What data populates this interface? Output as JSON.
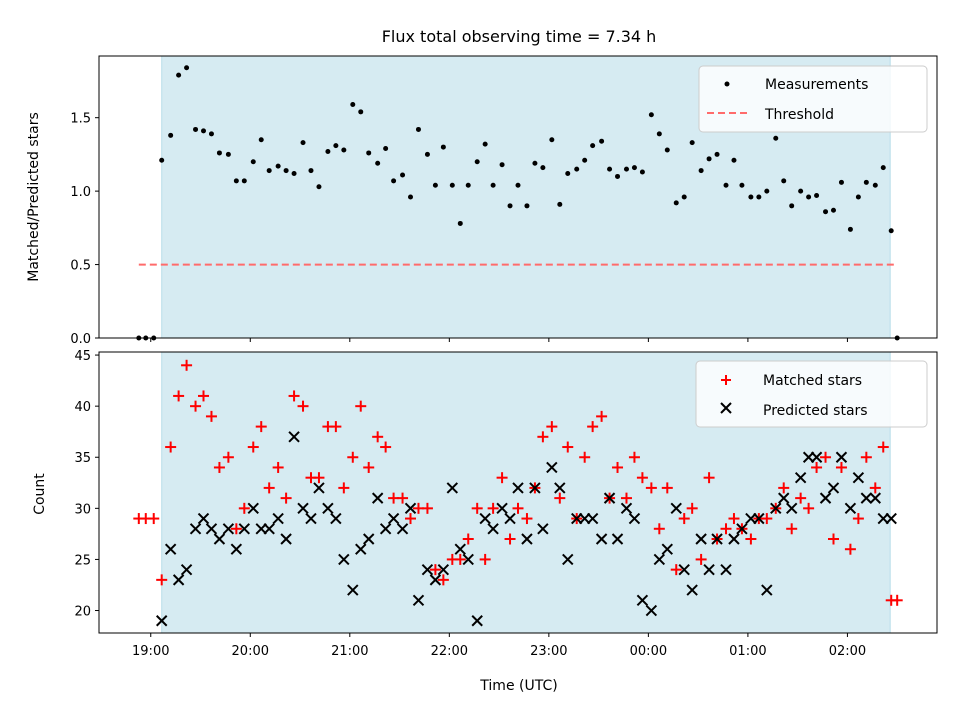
{
  "figure": {
    "title": "Flux total observing time = 7.34 h",
    "xlabel": "Time (UTC)",
    "x_tick_labels": [
      "19:00",
      "20:00",
      "21:00",
      "22:00",
      "23:00",
      "00:00",
      "01:00",
      "02:00"
    ]
  },
  "colors": {
    "shade": "#add8e6",
    "threshold": "#ff6b6b",
    "matched": "#ff0000",
    "predicted": "#000000",
    "measurement": "#000000"
  },
  "chart_data": [
    {
      "type": "scatter",
      "title": "Flux total observing time = 7.34 h",
      "xlabel": "",
      "ylabel": "Matched/Predicted stars",
      "x_unit": "hours since 19:00 UTC",
      "xlim": [
        -0.52,
        7.9
      ],
      "ylim": [
        0,
        1.92
      ],
      "y_ticks": [
        "0.0",
        "0.5",
        "1.0",
        "1.5"
      ],
      "shaded_span": [
        0.11,
        7.43
      ],
      "threshold": 0.5,
      "threshold_span": [
        -0.12,
        7.47
      ],
      "legend": {
        "placement": "top-right",
        "entries": [
          "Measurements",
          "Threshold"
        ]
      },
      "series": [
        {
          "name": "Measurements",
          "marker": "dot",
          "x": [
            -0.12,
            -0.05,
            0.03,
            0.11,
            0.2,
            0.28,
            0.36,
            0.45,
            0.53,
            0.61,
            0.69,
            0.78,
            0.86,
            0.94,
            1.03,
            1.11,
            1.19,
            1.28,
            1.36,
            1.44,
            1.53,
            1.61,
            1.69,
            1.78,
            1.86,
            1.94,
            2.03,
            2.11,
            2.19,
            2.28,
            2.36,
            2.44,
            2.53,
            2.61,
            2.69,
            2.78,
            2.86,
            2.94,
            3.03,
            3.11,
            3.19,
            3.28,
            3.36,
            3.44,
            3.53,
            3.61,
            3.69,
            3.78,
            3.86,
            3.94,
            4.03,
            4.11,
            4.19,
            4.28,
            4.36,
            4.44,
            4.53,
            4.61,
            4.69,
            4.78,
            4.86,
            4.94,
            5.03,
            5.11,
            5.19,
            5.28,
            5.36,
            5.44,
            5.53,
            5.61,
            5.69,
            5.78,
            5.86,
            5.94,
            6.03,
            6.11,
            6.19,
            6.28,
            6.36,
            6.44,
            6.53,
            6.61,
            6.69,
            6.78,
            6.86,
            6.94,
            7.03,
            7.11,
            7.19,
            7.28,
            7.36,
            7.44,
            7.5
          ],
          "y": [
            0,
            0,
            0,
            1.21,
            1.38,
            1.79,
            1.84,
            1.42,
            1.41,
            1.39,
            1.26,
            1.25,
            1.07,
            1.07,
            1.2,
            1.35,
            1.14,
            1.17,
            1.14,
            1.12,
            1.33,
            1.14,
            1.03,
            1.27,
            1.31,
            1.28,
            1.59,
            1.54,
            1.26,
            1.19,
            1.29,
            1.07,
            1.11,
            0.96,
            1.42,
            1.25,
            1.04,
            1.3,
            1.04,
            0.78,
            1.04,
            1.2,
            1.32,
            1.04,
            1.18,
            0.9,
            1.04,
            0.9,
            1.19,
            1.16,
            1.35,
            0.91,
            1.12,
            1.15,
            1.21,
            1.31,
            1.34,
            1.15,
            1.1,
            1.15,
            1.16,
            1.13,
            1.52,
            1.39,
            1.28,
            0.92,
            0.96,
            1.33,
            1.14,
            1.22,
            1.25,
            1.04,
            1.21,
            1.04,
            0.96,
            0.96,
            1.0,
            1.36,
            1.07,
            0.9,
            1.0,
            0.96,
            0.97,
            0.86,
            0.87,
            1.06,
            0.74,
            0.96,
            1.06,
            1.04,
            1.16,
            0.73,
            0
          ]
        },
        {
          "name": "Threshold",
          "marker": "dashed-line",
          "x": [
            -0.12,
            7.47
          ],
          "y": [
            0.5,
            0.5
          ]
        }
      ]
    },
    {
      "type": "scatter",
      "xlabel": "Time (UTC)",
      "ylabel": "Count",
      "x_unit": "hours since 19:00 UTC",
      "xlim": [
        -0.52,
        7.9
      ],
      "ylim": [
        17.8,
        45.3
      ],
      "y_ticks": [
        "20",
        "25",
        "30",
        "35",
        "40",
        "45"
      ],
      "shaded_span": [
        0.11,
        7.43
      ],
      "legend": {
        "placement": "top-right",
        "entries": [
          "Matched stars",
          "Predicted stars"
        ]
      },
      "series": [
        {
          "name": "Matched stars",
          "marker": "plus",
          "x": [
            -0.12,
            -0.05,
            0.03,
            0.11,
            0.2,
            0.28,
            0.36,
            0.45,
            0.53,
            0.61,
            0.69,
            0.78,
            0.86,
            0.94,
            1.03,
            1.11,
            1.19,
            1.28,
            1.36,
            1.44,
            1.53,
            1.61,
            1.69,
            1.78,
            1.86,
            1.94,
            2.03,
            2.11,
            2.19,
            2.28,
            2.36,
            2.44,
            2.53,
            2.61,
            2.69,
            2.78,
            2.86,
            2.94,
            3.03,
            3.11,
            3.19,
            3.28,
            3.36,
            3.44,
            3.53,
            3.61,
            3.69,
            3.78,
            3.86,
            3.94,
            4.03,
            4.11,
            4.19,
            4.28,
            4.36,
            4.44,
            4.53,
            4.61,
            4.69,
            4.78,
            4.86,
            4.94,
            5.03,
            5.11,
            5.19,
            5.28,
            5.36,
            5.44,
            5.53,
            5.61,
            5.69,
            5.78,
            5.86,
            5.94,
            6.03,
            6.11,
            6.19,
            6.28,
            6.36,
            6.44,
            6.53,
            6.61,
            6.69,
            6.78,
            6.86,
            6.94,
            7.03,
            7.11,
            7.19,
            7.28,
            7.36,
            7.44,
            7.5
          ],
          "y": [
            29,
            29,
            29,
            23,
            36,
            41,
            44,
            40,
            41,
            39,
            34,
            35,
            28,
            30,
            36,
            38,
            32,
            34,
            31,
            41,
            40,
            33,
            33,
            38,
            38,
            32,
            35,
            40,
            34,
            37,
            36,
            31,
            31,
            29,
            30,
            30,
            24,
            23,
            25,
            25,
            27,
            30,
            25,
            30,
            33,
            27,
            30,
            29,
            32,
            37,
            38,
            31,
            36,
            29,
            35,
            38,
            39,
            31,
            34,
            31,
            35,
            33,
            32,
            28,
            32,
            24,
            29,
            30,
            25,
            33,
            27,
            28,
            29,
            28,
            27,
            29,
            29,
            30,
            32,
            28,
            31,
            30,
            34,
            35,
            27,
            34,
            26,
            29,
            35,
            32,
            36,
            21,
            21
          ]
        },
        {
          "name": "Predicted stars",
          "marker": "x",
          "x": [
            0.11,
            0.2,
            0.28,
            0.36,
            0.45,
            0.53,
            0.61,
            0.69,
            0.78,
            0.86,
            0.94,
            1.03,
            1.11,
            1.19,
            1.28,
            1.36,
            1.44,
            1.53,
            1.61,
            1.69,
            1.78,
            1.86,
            1.94,
            2.03,
            2.11,
            2.19,
            2.28,
            2.36,
            2.44,
            2.53,
            2.61,
            2.69,
            2.78,
            2.86,
            2.94,
            3.03,
            3.11,
            3.19,
            3.28,
            3.36,
            3.44,
            3.53,
            3.61,
            3.69,
            3.78,
            3.86,
            3.94,
            4.03,
            4.11,
            4.19,
            4.28,
            4.36,
            4.44,
            4.53,
            4.61,
            4.69,
            4.78,
            4.86,
            4.94,
            5.03,
            5.11,
            5.19,
            5.28,
            5.36,
            5.44,
            5.53,
            5.61,
            5.69,
            5.78,
            5.86,
            5.94,
            6.03,
            6.11,
            6.19,
            6.28,
            6.36,
            6.44,
            6.53,
            6.61,
            6.69,
            6.78,
            6.86,
            6.94,
            7.03,
            7.11,
            7.19,
            7.28,
            7.36,
            7.44
          ],
          "y": [
            19,
            26,
            23,
            24,
            28,
            29,
            28,
            27,
            28,
            26,
            28,
            30,
            28,
            28,
            29,
            27,
            37,
            30,
            29,
            32,
            30,
            29,
            25,
            22,
            26,
            27,
            31,
            28,
            29,
            28,
            30,
            21,
            24,
            23,
            24,
            32,
            26,
            25,
            19,
            29,
            28,
            30,
            29,
            32,
            27,
            32,
            28,
            34,
            32,
            25,
            29,
            29,
            29,
            27,
            31,
            27,
            30,
            29,
            21,
            20,
            25,
            26,
            30,
            24,
            22,
            27,
            24,
            27,
            24,
            27,
            28,
            29,
            29,
            22,
            30,
            31,
            30,
            33,
            35,
            35,
            31,
            32,
            35,
            30,
            33,
            31,
            31,
            29,
            29
          ]
        }
      ]
    }
  ]
}
